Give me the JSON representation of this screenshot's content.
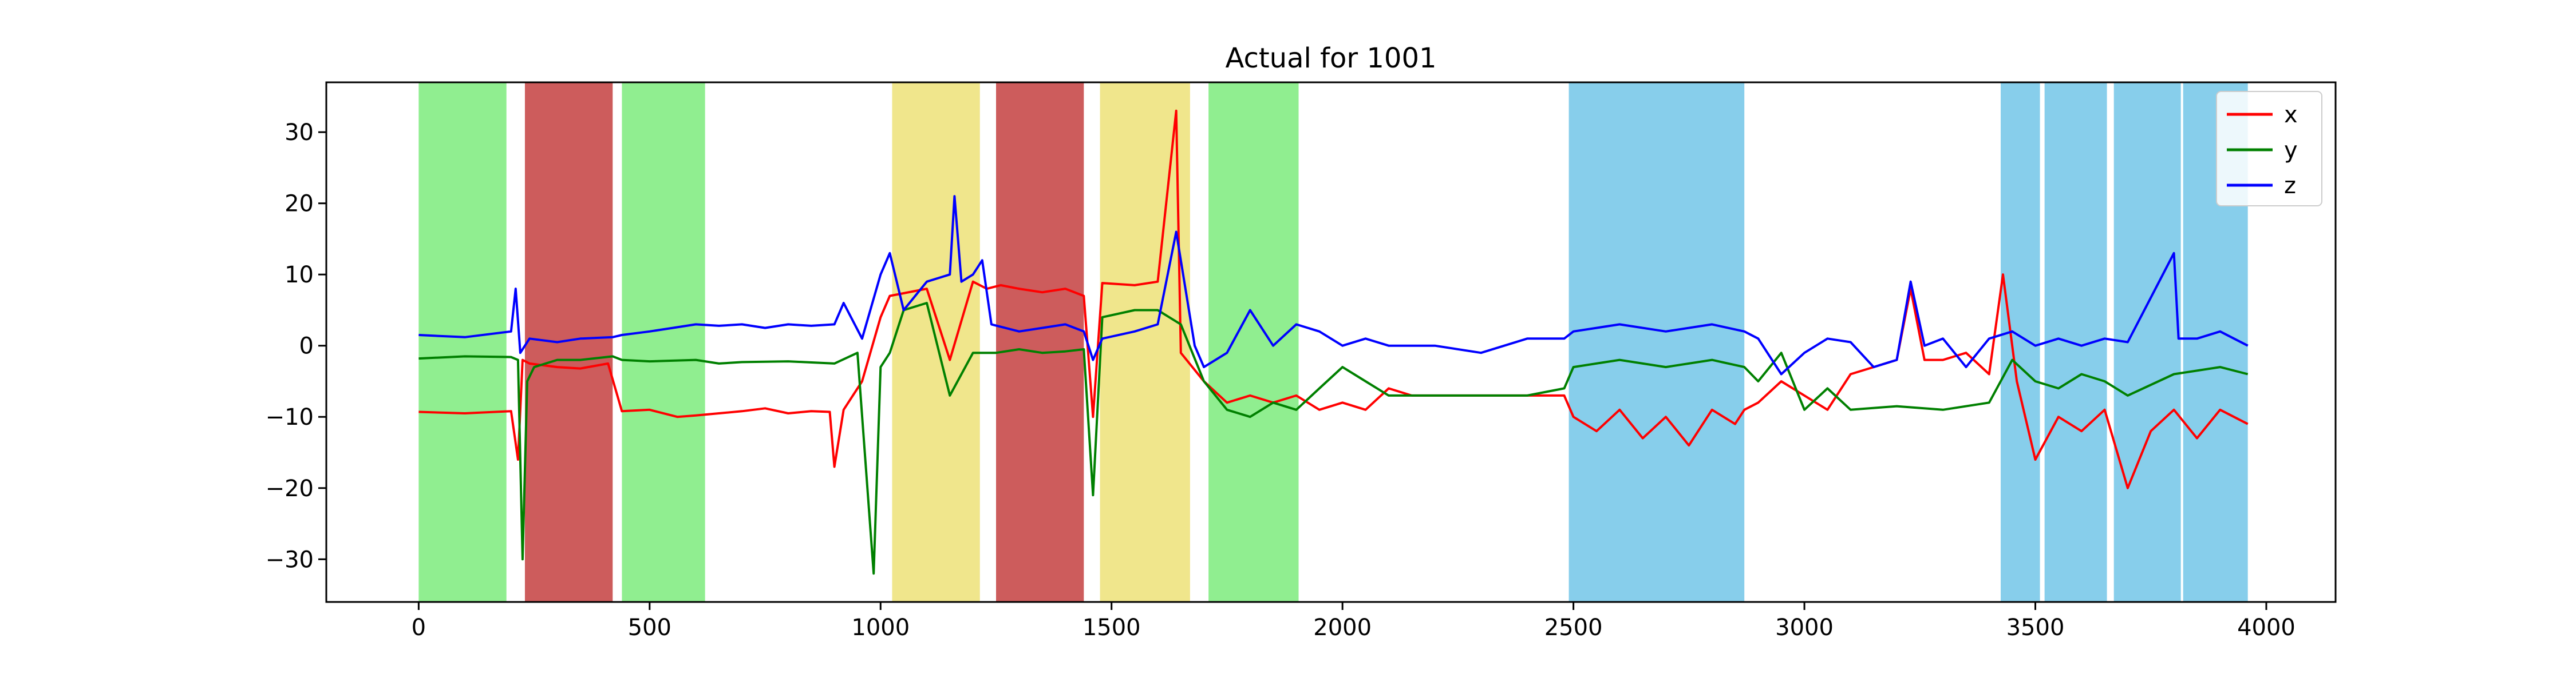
{
  "chart_data": {
    "type": "line",
    "title": "Actual for 1001",
    "xlabel": "",
    "ylabel": "",
    "xlim": [
      -200,
      4150
    ],
    "ylim": [
      -36,
      37
    ],
    "xticks": [
      0,
      500,
      1000,
      1500,
      2000,
      2500,
      3000,
      3500,
      4000
    ],
    "yticks": [
      -30,
      -20,
      -10,
      0,
      10,
      20,
      30
    ],
    "grid": false,
    "legend": "top-right",
    "shaded_regions": [
      {
        "x0": 0,
        "x1": 190,
        "color": "#90ee90"
      },
      {
        "x0": 230,
        "x1": 420,
        "color": "#cd5c5c"
      },
      {
        "x0": 440,
        "x1": 620,
        "color": "#90ee90"
      },
      {
        "x0": 1025,
        "x1": 1215,
        "color": "#f0e68c"
      },
      {
        "x0": 1250,
        "x1": 1440,
        "color": "#cd5c5c"
      },
      {
        "x0": 1475,
        "x1": 1670,
        "color": "#f0e68c"
      },
      {
        "x0": 1710,
        "x1": 1905,
        "color": "#90ee90"
      },
      {
        "x0": 2490,
        "x1": 2870,
        "color": "#87ceeb"
      },
      {
        "x0": 3425,
        "x1": 3510,
        "color": "#87ceeb"
      },
      {
        "x0": 3520,
        "x1": 3655,
        "color": "#87ceeb"
      },
      {
        "x0": 3670,
        "x1": 3815,
        "color": "#87ceeb"
      },
      {
        "x0": 3820,
        "x1": 3960,
        "color": "#87ceeb"
      }
    ],
    "series": [
      {
        "name": "x",
        "color": "#ff0000",
        "points": [
          [
            0,
            -9.3
          ],
          [
            100,
            -9.5
          ],
          [
            200,
            -9.2
          ],
          [
            215,
            -16
          ],
          [
            225,
            -2
          ],
          [
            240,
            -2.5
          ],
          [
            300,
            -3
          ],
          [
            350,
            -3.2
          ],
          [
            410,
            -2.5
          ],
          [
            440,
            -9.2
          ],
          [
            500,
            -9
          ],
          [
            560,
            -10
          ],
          [
            600,
            -9.8
          ],
          [
            650,
            -9.5
          ],
          [
            700,
            -9.2
          ],
          [
            750,
            -8.8
          ],
          [
            800,
            -9.5
          ],
          [
            850,
            -9.2
          ],
          [
            890,
            -9.3
          ],
          [
            900,
            -17
          ],
          [
            920,
            -9
          ],
          [
            960,
            -5
          ],
          [
            1000,
            4
          ],
          [
            1020,
            7
          ],
          [
            1100,
            8
          ],
          [
            1150,
            -2
          ],
          [
            1200,
            9
          ],
          [
            1230,
            8
          ],
          [
            1260,
            8.5
          ],
          [
            1300,
            8
          ],
          [
            1350,
            7.5
          ],
          [
            1400,
            8
          ],
          [
            1440,
            7
          ],
          [
            1460,
            -10
          ],
          [
            1480,
            8.8
          ],
          [
            1550,
            8.5
          ],
          [
            1600,
            9
          ],
          [
            1640,
            33
          ],
          [
            1650,
            -1
          ],
          [
            1700,
            -5
          ],
          [
            1750,
            -8
          ],
          [
            1800,
            -7
          ],
          [
            1850,
            -8
          ],
          [
            1900,
            -7
          ],
          [
            1950,
            -9
          ],
          [
            2000,
            -8
          ],
          [
            2050,
            -9
          ],
          [
            2100,
            -6
          ],
          [
            2150,
            -7
          ],
          [
            2200,
            -7
          ],
          [
            2300,
            -7
          ],
          [
            2400,
            -7
          ],
          [
            2480,
            -7
          ],
          [
            2500,
            -10
          ],
          [
            2550,
            -12
          ],
          [
            2600,
            -9
          ],
          [
            2650,
            -13
          ],
          [
            2700,
            -10
          ],
          [
            2750,
            -14
          ],
          [
            2800,
            -9
          ],
          [
            2850,
            -11
          ],
          [
            2870,
            -9
          ],
          [
            2900,
            -8
          ],
          [
            2950,
            -5
          ],
          [
            3000,
            -7
          ],
          [
            3050,
            -9
          ],
          [
            3100,
            -4
          ],
          [
            3150,
            -3
          ],
          [
            3200,
            -2
          ],
          [
            3230,
            8
          ],
          [
            3260,
            -2
          ],
          [
            3300,
            -2
          ],
          [
            3350,
            -1
          ],
          [
            3400,
            -4
          ],
          [
            3430,
            10
          ],
          [
            3460,
            -5
          ],
          [
            3500,
            -16
          ],
          [
            3550,
            -10
          ],
          [
            3600,
            -12
          ],
          [
            3650,
            -9
          ],
          [
            3700,
            -20
          ],
          [
            3750,
            -12
          ],
          [
            3800,
            -9
          ],
          [
            3850,
            -13
          ],
          [
            3900,
            -9
          ],
          [
            3960,
            -11
          ]
        ]
      },
      {
        "name": "y",
        "color": "#008000",
        "points": [
          [
            0,
            -1.8
          ],
          [
            100,
            -1.5
          ],
          [
            200,
            -1.6
          ],
          [
            215,
            -2
          ],
          [
            225,
            -30
          ],
          [
            235,
            -5
          ],
          [
            250,
            -3
          ],
          [
            300,
            -2
          ],
          [
            350,
            -2
          ],
          [
            420,
            -1.5
          ],
          [
            440,
            -2
          ],
          [
            500,
            -2.2
          ],
          [
            600,
            -2
          ],
          [
            650,
            -2.5
          ],
          [
            700,
            -2.3
          ],
          [
            800,
            -2.2
          ],
          [
            900,
            -2.5
          ],
          [
            950,
            -1
          ],
          [
            985,
            -32
          ],
          [
            1000,
            -3
          ],
          [
            1020,
            -1
          ],
          [
            1050,
            5
          ],
          [
            1100,
            6
          ],
          [
            1150,
            -7
          ],
          [
            1200,
            -1
          ],
          [
            1250,
            -1
          ],
          [
            1300,
            -0.5
          ],
          [
            1350,
            -1
          ],
          [
            1400,
            -0.8
          ],
          [
            1440,
            -0.5
          ],
          [
            1460,
            -21
          ],
          [
            1480,
            4
          ],
          [
            1550,
            5
          ],
          [
            1600,
            5
          ],
          [
            1650,
            3
          ],
          [
            1700,
            -5
          ],
          [
            1750,
            -9
          ],
          [
            1800,
            -10
          ],
          [
            1850,
            -8
          ],
          [
            1900,
            -9
          ],
          [
            1950,
            -6
          ],
          [
            2000,
            -3
          ],
          [
            2050,
            -5
          ],
          [
            2100,
            -7
          ],
          [
            2200,
            -7
          ],
          [
            2300,
            -7
          ],
          [
            2400,
            -7
          ],
          [
            2480,
            -6
          ],
          [
            2500,
            -3
          ],
          [
            2600,
            -2
          ],
          [
            2700,
            -3
          ],
          [
            2800,
            -2
          ],
          [
            2870,
            -3
          ],
          [
            2900,
            -5
          ],
          [
            2950,
            -1
          ],
          [
            3000,
            -9
          ],
          [
            3050,
            -6
          ],
          [
            3100,
            -9
          ],
          [
            3200,
            -8.5
          ],
          [
            3300,
            -9
          ],
          [
            3400,
            -8
          ],
          [
            3450,
            -2
          ],
          [
            3500,
            -5
          ],
          [
            3550,
            -6
          ],
          [
            3600,
            -4
          ],
          [
            3650,
            -5
          ],
          [
            3700,
            -7
          ],
          [
            3800,
            -4
          ],
          [
            3900,
            -3
          ],
          [
            3960,
            -4
          ]
        ]
      },
      {
        "name": "z",
        "color": "#0000ff",
        "points": [
          [
            0,
            1.5
          ],
          [
            100,
            1.2
          ],
          [
            200,
            2
          ],
          [
            210,
            8
          ],
          [
            220,
            -1
          ],
          [
            240,
            1
          ],
          [
            300,
            0.5
          ],
          [
            350,
            1
          ],
          [
            420,
            1.2
          ],
          [
            440,
            1.5
          ],
          [
            500,
            2
          ],
          [
            550,
            2.5
          ],
          [
            600,
            3
          ],
          [
            650,
            2.8
          ],
          [
            700,
            3
          ],
          [
            750,
            2.5
          ],
          [
            800,
            3
          ],
          [
            850,
            2.8
          ],
          [
            900,
            3
          ],
          [
            920,
            6
          ],
          [
            960,
            1
          ],
          [
            1000,
            10
          ],
          [
            1020,
            13
          ],
          [
            1050,
            5
          ],
          [
            1100,
            9
          ],
          [
            1150,
            10
          ],
          [
            1160,
            21
          ],
          [
            1175,
            9
          ],
          [
            1200,
            10
          ],
          [
            1220,
            12
          ],
          [
            1240,
            3
          ],
          [
            1300,
            2
          ],
          [
            1350,
            2.5
          ],
          [
            1400,
            3
          ],
          [
            1440,
            2
          ],
          [
            1460,
            -2
          ],
          [
            1480,
            1
          ],
          [
            1550,
            2
          ],
          [
            1600,
            3
          ],
          [
            1640,
            16
          ],
          [
            1680,
            0
          ],
          [
            1700,
            -3
          ],
          [
            1750,
            -1
          ],
          [
            1800,
            5
          ],
          [
            1850,
            0
          ],
          [
            1900,
            3
          ],
          [
            1950,
            2
          ],
          [
            2000,
            0
          ],
          [
            2050,
            1
          ],
          [
            2100,
            0
          ],
          [
            2200,
            0
          ],
          [
            2300,
            -1
          ],
          [
            2400,
            1
          ],
          [
            2480,
            1
          ],
          [
            2500,
            2
          ],
          [
            2600,
            3
          ],
          [
            2700,
            2
          ],
          [
            2800,
            3
          ],
          [
            2870,
            2
          ],
          [
            2900,
            1
          ],
          [
            2950,
            -4
          ],
          [
            3000,
            -1
          ],
          [
            3050,
            1
          ],
          [
            3100,
            0.5
          ],
          [
            3150,
            -3
          ],
          [
            3200,
            -2
          ],
          [
            3230,
            9
          ],
          [
            3260,
            0
          ],
          [
            3300,
            1
          ],
          [
            3350,
            -3
          ],
          [
            3400,
            1
          ],
          [
            3450,
            2
          ],
          [
            3500,
            0
          ],
          [
            3550,
            1
          ],
          [
            3600,
            0
          ],
          [
            3650,
            1
          ],
          [
            3700,
            0.5
          ],
          [
            3800,
            13
          ],
          [
            3810,
            1
          ],
          [
            3850,
            1
          ],
          [
            3900,
            2
          ],
          [
            3960,
            0
          ]
        ]
      }
    ]
  }
}
